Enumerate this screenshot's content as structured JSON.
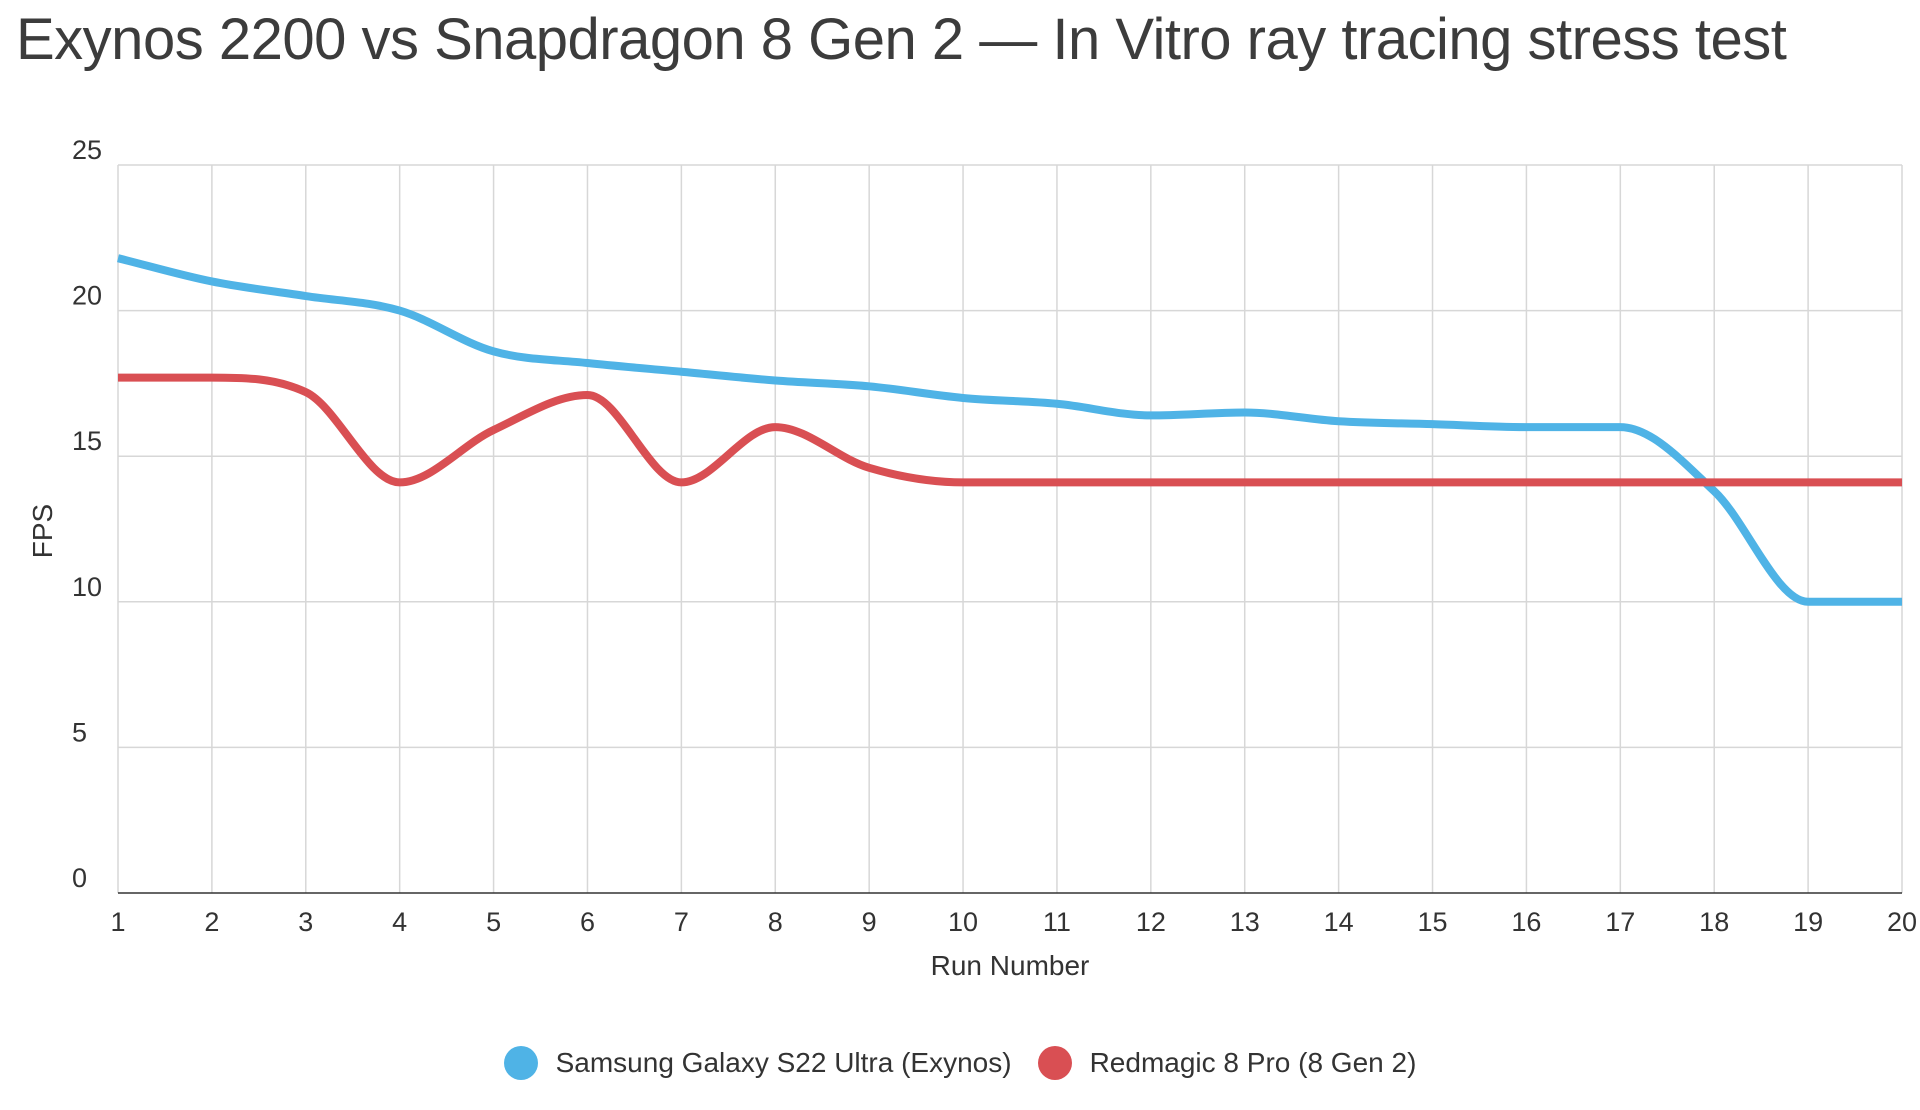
{
  "chart_data": {
    "type": "line",
    "title": "Exynos 2200 vs Snapdragon 8 Gen 2 — In Vitro ray tracing stress test",
    "xlabel": "Run Number",
    "ylabel": "FPS",
    "x": [
      1,
      2,
      3,
      4,
      5,
      6,
      7,
      8,
      9,
      10,
      11,
      12,
      13,
      14,
      15,
      16,
      17,
      18,
      19,
      20
    ],
    "yticks": [
      0,
      5,
      10,
      15,
      20,
      25
    ],
    "ylim": [
      0,
      25
    ],
    "xlim": [
      1,
      20
    ],
    "grid": true,
    "legend_position": "bottom",
    "series": [
      {
        "name": "Samsung Galaxy S22 Ultra (Exynos)",
        "color": "#4fb3e6",
        "values": [
          21.8,
          21.0,
          20.5,
          20.0,
          18.6,
          18.2,
          17.9,
          17.6,
          17.4,
          17.0,
          16.8,
          16.4,
          16.5,
          16.2,
          16.1,
          16.0,
          16.0,
          13.8,
          10.0,
          10.0
        ]
      },
      {
        "name": "Redmagic 8 Pro (8 Gen 2)",
        "color": "#d94f53",
        "values": [
          17.7,
          17.7,
          17.2,
          14.1,
          15.9,
          17.1,
          14.1,
          16.0,
          14.6,
          14.1,
          14.1,
          14.1,
          14.1,
          14.1,
          14.1,
          14.1,
          14.1,
          14.1,
          14.1,
          14.1
        ]
      }
    ]
  }
}
